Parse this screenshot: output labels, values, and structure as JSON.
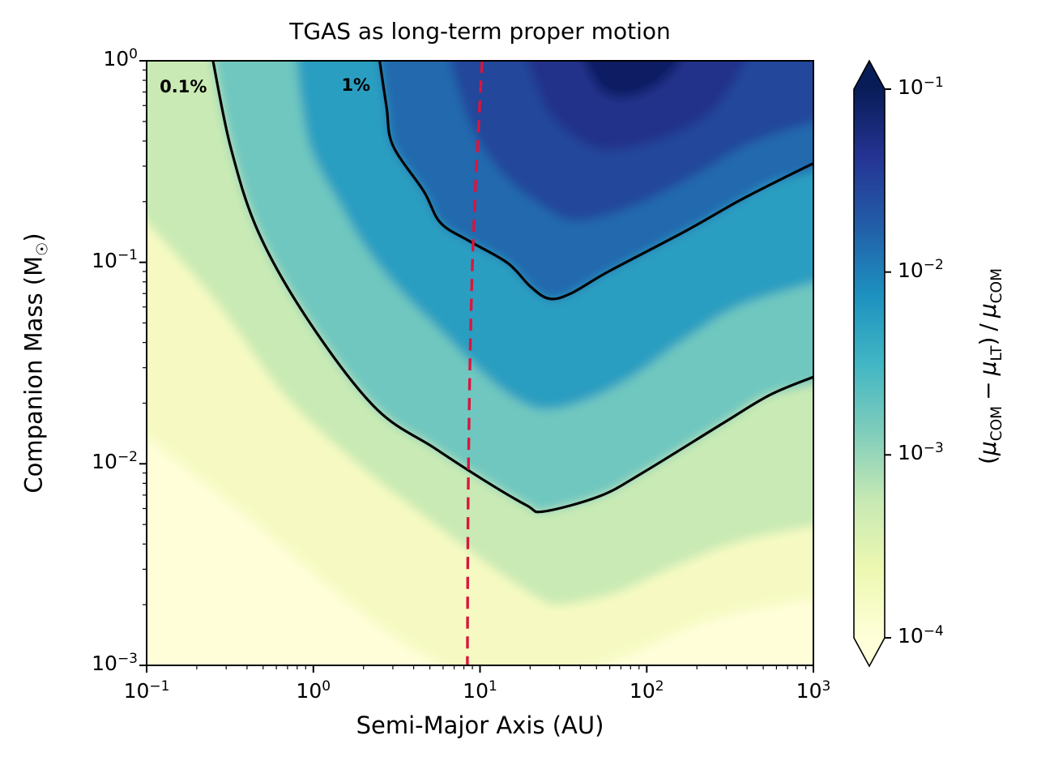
{
  "figure": {
    "title": "TGAS as long-term proper motion",
    "bg": "#ffffff"
  },
  "axes": {
    "xlabel": "Semi-Major Axis (AU)",
    "ylabel_pre": "Companion Mass (M",
    "ylabel_sun": "☉",
    "ylabel_post": ")",
    "x_tick_exponents": [
      -1,
      0,
      1,
      2,
      3
    ],
    "y_tick_exponents": [
      0,
      -1,
      -2,
      -3
    ]
  },
  "colorbar": {
    "tick_exponents": [
      -1,
      -2,
      -3,
      -4
    ],
    "extend": "both",
    "label": {
      "open": "(",
      "mu": "μ",
      "sub_com": "COM",
      "minus": "−",
      "mu2": "μ",
      "sub_lt": "LT",
      "close": ")",
      "slash": "/",
      "mu3": "μ",
      "sub_com2": "COM"
    },
    "colormap_stops": [
      "#081d58",
      "#253494",
      "#225ea8",
      "#1d91c0",
      "#41b6c4",
      "#7fcdbb",
      "#c7e9b4",
      "#edf8b1",
      "#ffffd9"
    ]
  },
  "chart_data": {
    "type": "contour-heatmap",
    "title": "TGAS as long-term proper motion",
    "x": {
      "label": "Semi-Major Axis (AU)",
      "scale": "log",
      "range": [
        0.1,
        1000
      ]
    },
    "y": {
      "label": "Companion Mass (Msun)",
      "scale": "log",
      "range": [
        0.001,
        1
      ]
    },
    "z": {
      "label": "(mu_COM - mu_LT) / mu_COM",
      "scale": "log",
      "range": [
        0.0001,
        0.1
      ],
      "colormap": "YlGnBu"
    },
    "base_color": "#fffed9",
    "contour_line_color": "#000000",
    "contour_lines": [
      {
        "label": "0.1%",
        "level": 0.001,
        "label_pos": [
          0.166,
          0.742
        ],
        "points": [
          [
            0.25,
            1.0
          ],
          [
            0.32,
            0.37
          ],
          [
            0.47,
            0.14
          ],
          [
            0.94,
            0.051
          ],
          [
            2.35,
            0.019
          ],
          [
            5.3,
            0.012
          ],
          [
            10.8,
            0.0082
          ],
          [
            19.2,
            0.0062
          ],
          [
            24,
            0.0058
          ],
          [
            52,
            0.0069
          ],
          [
            94,
            0.009
          ],
          [
            290,
            0.016
          ],
          [
            550,
            0.022
          ],
          [
            1000,
            0.027
          ]
        ]
      },
      {
        "label": "1%",
        "level": 0.01,
        "label_pos": [
          1.8,
          0.76
        ],
        "points": [
          [
            2.5,
            1.0
          ],
          [
            2.75,
            0.59
          ],
          [
            3.0,
            0.38
          ],
          [
            4.6,
            0.225
          ],
          [
            5.8,
            0.157
          ],
          [
            8.7,
            0.127
          ],
          [
            14.7,
            0.099
          ],
          [
            20,
            0.076
          ],
          [
            26,
            0.066
          ],
          [
            35,
            0.07
          ],
          [
            59,
            0.09
          ],
          [
            174,
            0.144
          ],
          [
            350,
            0.2
          ],
          [
            625,
            0.256
          ],
          [
            1000,
            0.31
          ]
        ]
      }
    ],
    "shading_levels": [
      {
        "level": 0.0001,
        "color": "#f6fac2",
        "points": [
          [
            0.1,
            0.0187
          ],
          [
            0.383,
            0.0056
          ],
          [
            1.47,
            0.0022
          ],
          [
            4.0,
            0.0012
          ],
          [
            12.3,
            0.00081
          ],
          [
            52.7,
            0.001
          ],
          [
            252,
            0.0017
          ],
          [
            1000,
            0.0023
          ]
        ]
      },
      {
        "level": 0.0003,
        "color": "#c9eab4",
        "points": [
          [
            0.1,
            0.25
          ],
          [
            0.245,
            0.068
          ],
          [
            0.67,
            0.022
          ],
          [
            1.84,
            0.01
          ],
          [
            4.5,
            0.0056
          ],
          [
            11.0,
            0.0032
          ],
          [
            21.5,
            0.0022
          ],
          [
            30,
            0.002
          ],
          [
            66,
            0.0023
          ],
          [
            161,
            0.0032
          ],
          [
            394,
            0.0042
          ],
          [
            1000,
            0.0053
          ]
        ]
      },
      {
        "level": 0.001,
        "color": "#6fc7bf",
        "points": [
          [
            0.25,
            1.0
          ],
          [
            0.32,
            0.37
          ],
          [
            0.47,
            0.14
          ],
          [
            0.94,
            0.051
          ],
          [
            2.35,
            0.019
          ],
          [
            5.3,
            0.012
          ],
          [
            10.8,
            0.0082
          ],
          [
            19.2,
            0.0062
          ],
          [
            24,
            0.0058
          ],
          [
            52,
            0.0069
          ],
          [
            94,
            0.009
          ],
          [
            290,
            0.016
          ],
          [
            550,
            0.022
          ],
          [
            1000,
            0.027
          ]
        ]
      },
      {
        "level": 0.003,
        "color": "#2a9ec1",
        "points": [
          [
            0.79,
            1.0
          ],
          [
            0.86,
            0.574
          ],
          [
            0.99,
            0.345
          ],
          [
            1.47,
            0.189
          ],
          [
            2.05,
            0.119
          ],
          [
            3.2,
            0.0748
          ],
          [
            5.6,
            0.047
          ],
          [
            11.0,
            0.027
          ],
          [
            17.2,
            0.0205
          ],
          [
            24.9,
            0.0186
          ],
          [
            42,
            0.0205
          ],
          [
            81.6,
            0.027
          ],
          [
            180,
            0.043
          ],
          [
            394,
            0.0625
          ],
          [
            1000,
            0.0884
          ]
        ]
      },
      {
        "level": 0.01,
        "color": "#2169ae",
        "points": [
          [
            2.5,
            1.0
          ],
          [
            2.75,
            0.59
          ],
          [
            3.0,
            0.38
          ],
          [
            4.6,
            0.225
          ],
          [
            5.8,
            0.157
          ],
          [
            8.7,
            0.127
          ],
          [
            14.7,
            0.099
          ],
          [
            20,
            0.076
          ],
          [
            26,
            0.066
          ],
          [
            35,
            0.07
          ],
          [
            59,
            0.09
          ],
          [
            174,
            0.144
          ],
          [
            350,
            0.2
          ],
          [
            625,
            0.256
          ],
          [
            1000,
            0.31
          ]
        ]
      },
      {
        "level": 0.02,
        "color": "#24479b",
        "points": [
          [
            6.6,
            1.0
          ],
          [
            8.8,
            0.477
          ],
          [
            13.7,
            0.274
          ],
          [
            24,
            0.189
          ],
          [
            37.7,
            0.161
          ],
          [
            82,
            0.189
          ],
          [
            201,
            0.274
          ],
          [
            437,
            0.396
          ],
          [
            1000,
            0.558
          ]
        ]
      },
      {
        "level": 0.04,
        "color": "#20308a",
        "points": [
          [
            19.2,
            1.0
          ],
          [
            25.3,
            0.574
          ],
          [
            37.7,
            0.415
          ],
          [
            59,
            0.361
          ],
          [
            128,
            0.415
          ],
          [
            252,
            0.574
          ],
          [
            394,
            1.0
          ]
        ]
      },
      {
        "level": 0.06,
        "color": "#111f63",
        "points": [
          [
            42,
            1.0
          ],
          [
            52.7,
            0.723
          ],
          [
            73.4,
            0.659
          ],
          [
            115,
            0.757
          ],
          [
            161,
            1.0
          ]
        ]
      }
    ],
    "reference_line": {
      "color": "#dc143c",
      "style": "dashed",
      "points": [
        [
          10.3,
          1.0
        ],
        [
          9.3,
          0.198
        ],
        [
          8.8,
          0.049
        ],
        [
          8.5,
          0.0077
        ],
        [
          8.4,
          0.001
        ]
      ]
    }
  }
}
